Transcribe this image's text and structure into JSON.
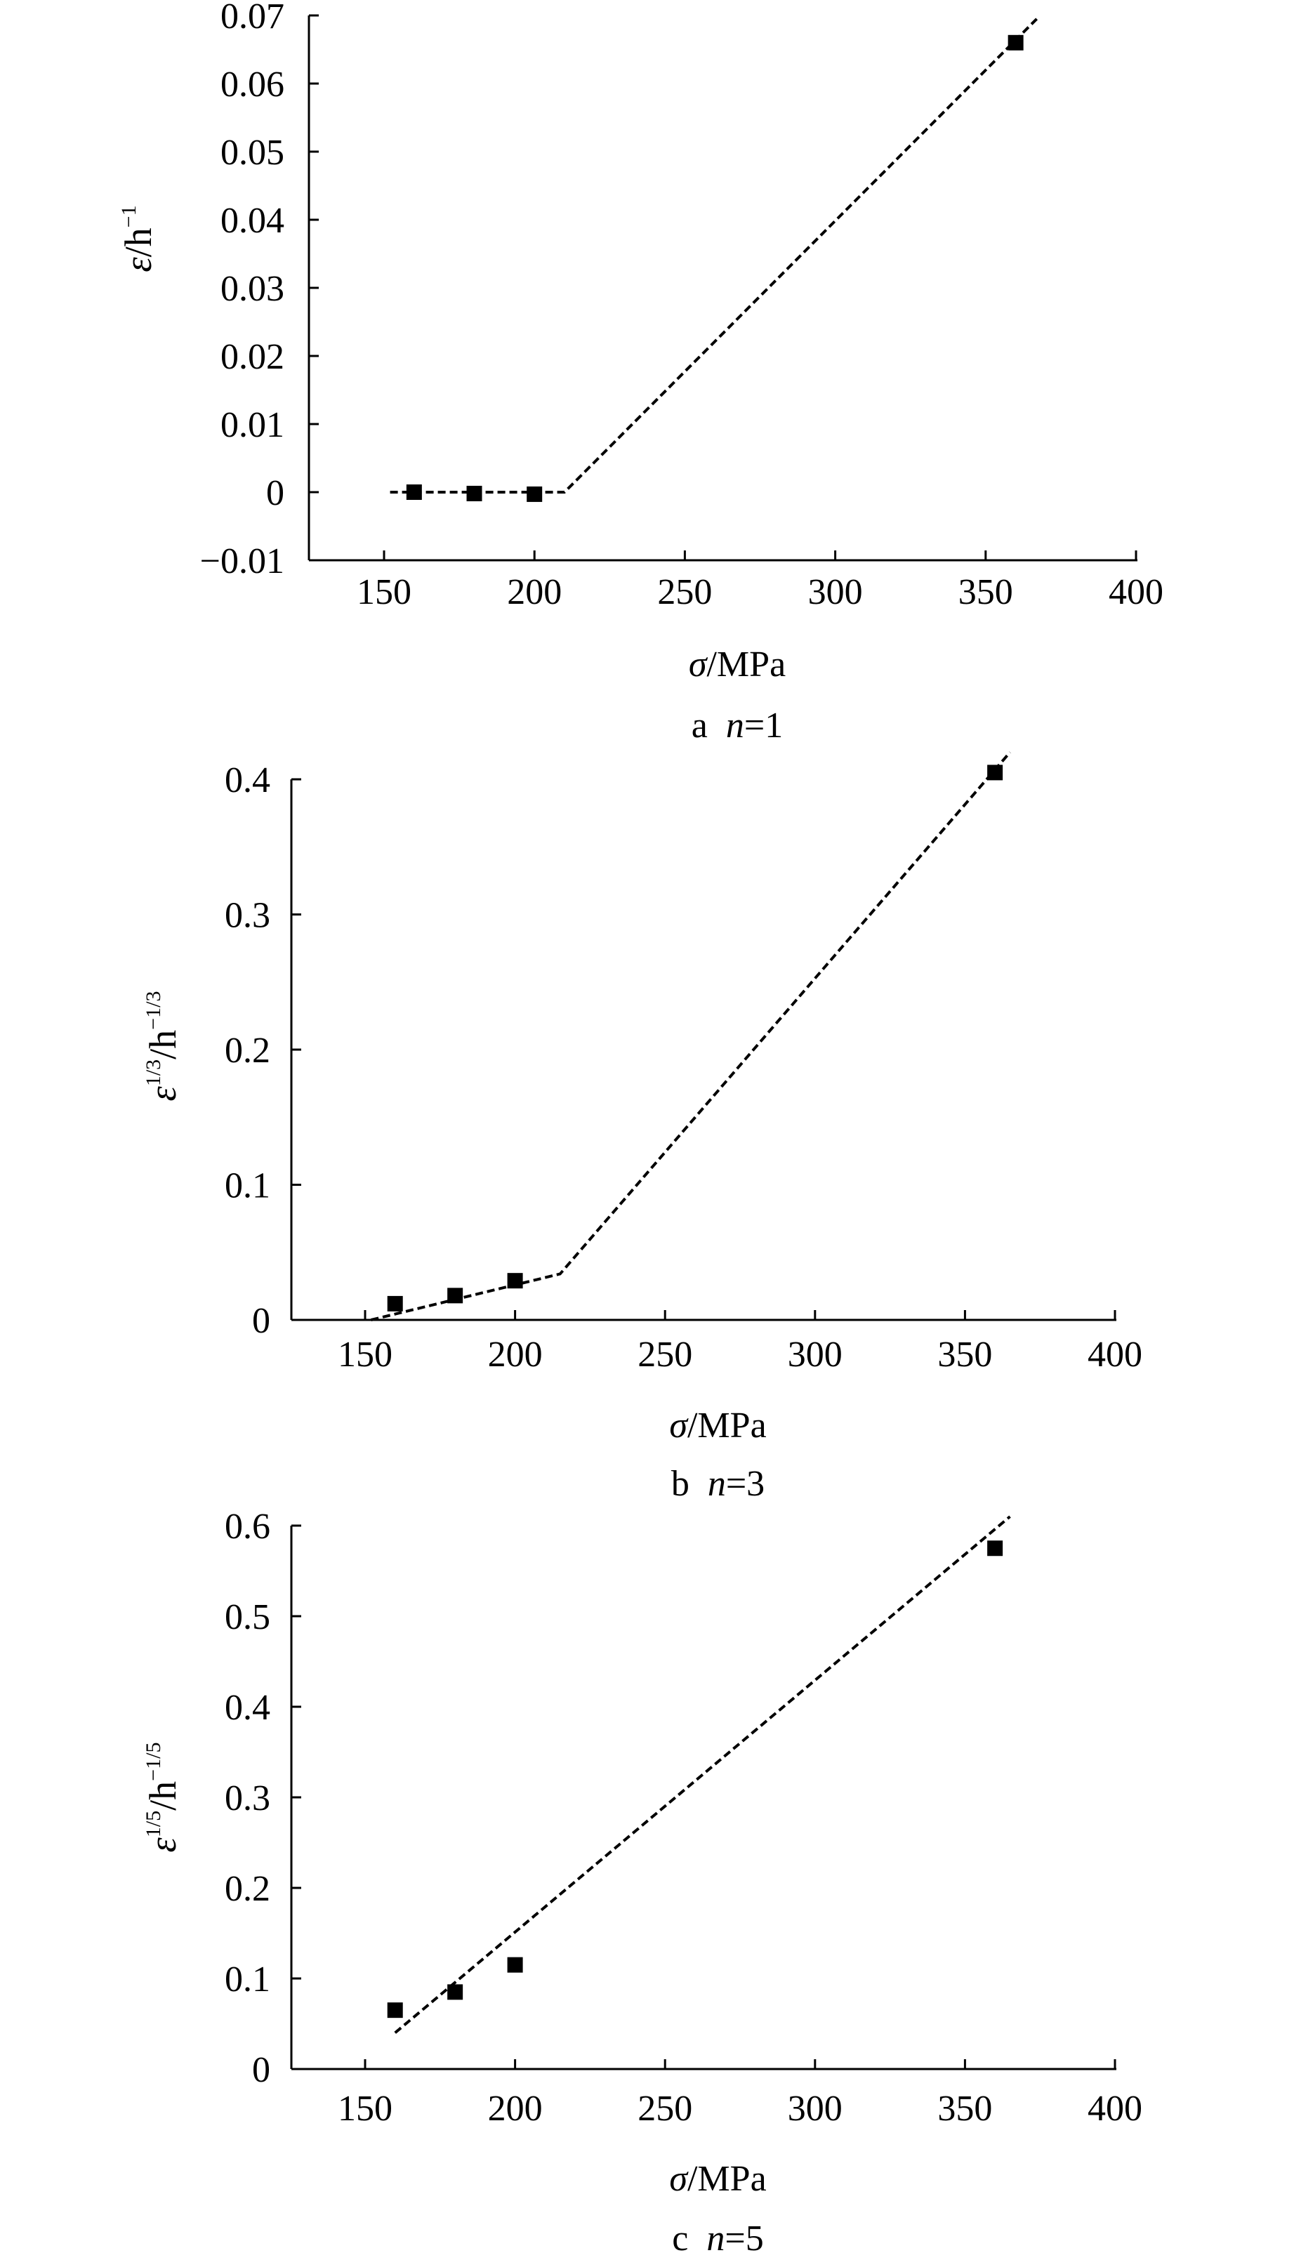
{
  "chart_data": [
    {
      "type": "scatter",
      "caption": {
        "letter": "a",
        "n_symbol": "n",
        "n_value": "=1"
      },
      "ylabel": {
        "base": "ε",
        "mid": "/h",
        "exponent": "−1"
      },
      "xlabel": {
        "symbol": "σ",
        "unit": "/MPa"
      },
      "xlim": [
        150,
        400
      ],
      "ylim": [
        -0.01,
        0.07
      ],
      "xticks": [
        "150",
        "200",
        "250",
        "300",
        "350",
        "400"
      ],
      "xtick_values": [
        150,
        200,
        250,
        300,
        350,
        400
      ],
      "yticks": [
        "−0.01",
        "0",
        "0.01",
        "0.02",
        "0.03",
        "0.04",
        "0.05",
        "0.06",
        "0.07"
      ],
      "ytick_values": [
        -0.01,
        0,
        0.01,
        0.02,
        0.03,
        0.04,
        0.05,
        0.06,
        0.07
      ],
      "points": [
        {
          "x": 160,
          "y": 0.0
        },
        {
          "x": 180,
          "y": -0.0002
        },
        {
          "x": 200,
          "y": -0.0003
        },
        {
          "x": 360,
          "y": 0.066
        }
      ],
      "fit_line": [
        [
          152,
          0.0
        ],
        [
          210,
          0.0
        ],
        [
          367,
          0.0695
        ]
      ]
    },
    {
      "type": "scatter",
      "caption": {
        "letter": "b",
        "n_symbol": "n",
        "n_value": "=3"
      },
      "ylabel": {
        "base": "ε",
        "mid": "/h",
        "exponent_base": "1/3",
        "exponent": "−1/3"
      },
      "xlabel": {
        "symbol": "σ",
        "unit": "/MPa"
      },
      "xlim": [
        125,
        400
      ],
      "ylim": [
        0,
        0.4
      ],
      "xticks": [
        "150",
        "200",
        "250",
        "300",
        "350",
        "400"
      ],
      "xtick_values": [
        150,
        200,
        250,
        300,
        350,
        400
      ],
      "yticks": [
        "0",
        "0.1",
        "0.2",
        "0.3",
        "0.4"
      ],
      "ytick_values": [
        0,
        0.1,
        0.2,
        0.3,
        0.4
      ],
      "points": [
        {
          "x": 160,
          "y": 0.012
        },
        {
          "x": 180,
          "y": 0.018
        },
        {
          "x": 200,
          "y": 0.029
        },
        {
          "x": 360,
          "y": 0.405
        }
      ],
      "fit_line": [
        [
          152,
          0.0
        ],
        [
          215,
          0.034
        ],
        [
          365,
          0.42
        ]
      ]
    },
    {
      "type": "scatter",
      "caption": {
        "letter": "c",
        "n_symbol": "n",
        "n_value": "=5"
      },
      "ylabel": {
        "base": "ε",
        "mid": "/h",
        "exponent_base": "1/5",
        "exponent": "−1/5"
      },
      "xlabel": {
        "symbol": "σ",
        "unit": "/MPa"
      },
      "xlim": [
        125,
        400
      ],
      "ylim": [
        0,
        0.6
      ],
      "xticks": [
        "150",
        "200",
        "250",
        "300",
        "350",
        "400"
      ],
      "xtick_values": [
        150,
        200,
        250,
        300,
        350,
        400
      ],
      "yticks": [
        "0",
        "0.1",
        "0.2",
        "0.3",
        "0.4",
        "0.5",
        "0.6"
      ],
      "ytick_values": [
        0,
        0.1,
        0.2,
        0.3,
        0.4,
        0.5,
        0.6
      ],
      "points": [
        {
          "x": 160,
          "y": 0.065
        },
        {
          "x": 180,
          "y": 0.085
        },
        {
          "x": 200,
          "y": 0.115
        },
        {
          "x": 360,
          "y": 0.575
        }
      ],
      "fit_line": [
        [
          160,
          0.04
        ],
        [
          365,
          0.61
        ]
      ]
    }
  ]
}
